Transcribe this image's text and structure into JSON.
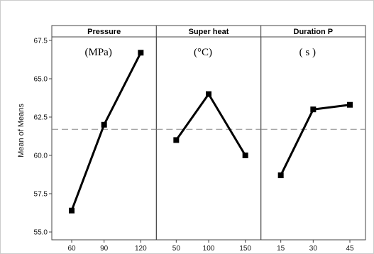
{
  "chart_data": {
    "type": "line",
    "ylabel": "Mean of Means",
    "ylim": [
      55.0,
      67.5
    ],
    "yticks": [
      55.0,
      57.5,
      60.0,
      62.5,
      65.0,
      67.5
    ],
    "ytick_labels": [
      "55.0",
      "57.5",
      "60.0",
      "62.5",
      "65.0",
      "67.5"
    ],
    "reference_line": 61.7,
    "grid": false,
    "panels": [
      {
        "title": "Pressure",
        "unit": "(MPa)",
        "x": [
          "60",
          "90",
          "120"
        ],
        "values": [
          56.4,
          62.0,
          66.7
        ]
      },
      {
        "title": "Super heat",
        "unit": "(°C)",
        "x": [
          "50",
          "100",
          "150"
        ],
        "values": [
          61.0,
          64.0,
          60.0
        ]
      },
      {
        "title": "Duration P",
        "unit": "( s )",
        "x": [
          "15",
          "30",
          "45"
        ],
        "values": [
          58.7,
          63.0,
          63.3
        ]
      }
    ]
  },
  "colors": {
    "line": "#000000",
    "reference_line": "#888888",
    "frame": "#444444",
    "header_bg": "#ffffff",
    "outer_border": "#cccccc"
  }
}
